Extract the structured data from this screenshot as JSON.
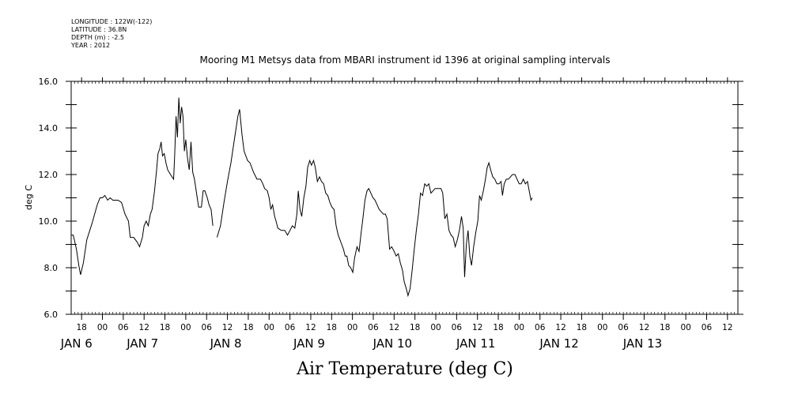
{
  "chart_data": {
    "type": "line",
    "title": "Mooring M1 Metsys data from MBARI instrument id 1396 at original sampling intervals",
    "meta": [
      "LONGITUDE : 122W(-122)",
      "LATITUDE : 36.8N",
      "DEPTH (m) : -2.5",
      "YEAR : 2012"
    ],
    "xlabel": "Air Temperature (deg C)",
    "ylabel": "deg C",
    "ylim": [
      6.0,
      16.0
    ],
    "yticks": [
      "6.0",
      "8.0",
      "10.0",
      "12.0",
      "14.0",
      "16.0"
    ],
    "xlim": [
      "2012-01-05T15:00",
      "2012-01-13T15:00"
    ],
    "hour_ticks": [
      "18",
      "00",
      "06",
      "12",
      "18",
      "00",
      "06",
      "12",
      "18",
      "00",
      "06",
      "12",
      "18",
      "00",
      "06",
      "12",
      "18",
      "00",
      "06",
      "12",
      "18",
      "00",
      "06",
      "12",
      "18",
      "00",
      "06",
      "12",
      "18",
      "00",
      "06",
      "12"
    ],
    "day_labels": [
      "JAN  6",
      "JAN  7",
      "JAN  8",
      "JAN  9",
      "JAN 10",
      "JAN 11",
      "JAN 12",
      "JAN 13"
    ],
    "grid": false,
    "line_color": "#000000",
    "series": [
      {
        "values": [
          [
            0,
            9.4
          ],
          [
            0.6,
            9.4
          ],
          [
            1.5,
            8.8
          ],
          [
            2.2,
            8.1
          ],
          [
            2.7,
            7.7
          ],
          [
            3.5,
            8.2
          ],
          [
            4.5,
            9.2
          ],
          [
            6,
            9.9
          ],
          [
            7.5,
            10.7
          ],
          [
            8.3,
            11.0
          ],
          [
            9,
            11.0
          ],
          [
            9.7,
            11.1
          ],
          [
            10.5,
            10.9
          ],
          [
            11.2,
            11.0
          ],
          [
            12,
            10.9
          ],
          [
            13.5,
            10.9
          ],
          [
            14.5,
            10.8
          ],
          [
            15.5,
            10.3
          ],
          [
            16.5,
            10.0
          ],
          [
            17,
            9.3
          ],
          [
            18,
            9.3
          ],
          [
            19,
            9.1
          ],
          [
            19.7,
            8.9
          ],
          [
            20.5,
            9.3
          ],
          [
            21,
            9.8
          ],
          [
            21.6,
            10.0
          ],
          [
            22.2,
            9.8
          ],
          [
            22.8,
            10.3
          ],
          [
            23.3,
            10.5
          ],
          [
            24,
            11.3
          ],
          [
            24.6,
            12.2
          ],
          [
            25,
            12.9
          ],
          [
            25.5,
            13.1
          ],
          [
            25.9,
            13.4
          ],
          [
            26.3,
            12.8
          ],
          [
            26.8,
            12.9
          ],
          [
            27.3,
            12.5
          ],
          [
            27.8,
            12.2
          ],
          [
            28.6,
            12.0
          ],
          [
            29.5,
            11.8
          ],
          [
            29.8,
            12.8
          ],
          [
            30.2,
            14.5
          ],
          [
            30.6,
            13.6
          ],
          [
            31,
            15.3
          ],
          [
            31.4,
            14.2
          ],
          [
            31.8,
            14.9
          ],
          [
            32.2,
            14.5
          ],
          [
            32.6,
            13.0
          ],
          [
            33,
            13.5
          ],
          [
            33.5,
            12.7
          ],
          [
            34,
            12.2
          ],
          [
            34.5,
            13.4
          ],
          [
            35,
            12.1
          ],
          [
            35.5,
            11.8
          ],
          [
            36.3,
            11.0
          ],
          [
            36.7,
            10.6
          ],
          [
            37.5,
            10.6
          ],
          [
            38,
            11.3
          ],
          [
            38.5,
            11.3
          ],
          [
            39.2,
            11.0
          ],
          [
            39.7,
            10.7
          ],
          [
            40.3,
            10.5
          ],
          [
            40.8,
            9.8
          ],
          [
            41.2,
            null
          ],
          [
            42,
            9.3
          ],
          [
            43,
            9.8
          ],
          [
            44,
            10.8
          ],
          [
            45,
            11.7
          ],
          [
            46,
            12.5
          ],
          [
            47,
            13.5
          ],
          [
            48,
            14.5
          ],
          [
            48.5,
            14.8
          ],
          [
            49.2,
            13.7
          ],
          [
            49.8,
            13.0
          ],
          [
            50.8,
            12.6
          ],
          [
            51.5,
            12.5
          ],
          [
            52.5,
            12.1
          ],
          [
            53.5,
            11.8
          ],
          [
            54.5,
            11.8
          ],
          [
            55.2,
            11.6
          ],
          [
            55.7,
            11.4
          ],
          [
            56.5,
            11.3
          ],
          [
            57,
            11.0
          ],
          [
            57.5,
            10.5
          ],
          [
            58,
            10.7
          ],
          [
            58.6,
            10.2
          ],
          [
            59,
            10.0
          ],
          [
            59.5,
            9.7
          ],
          [
            60.5,
            9.6
          ],
          [
            61.5,
            9.6
          ],
          [
            62.3,
            9.4
          ],
          [
            63,
            9.6
          ],
          [
            63.7,
            9.8
          ],
          [
            64.4,
            9.7
          ],
          [
            65,
            10.3
          ],
          [
            65.4,
            11.3
          ],
          [
            65.9,
            10.5
          ],
          [
            66.4,
            10.2
          ],
          [
            67,
            11.0
          ],
          [
            67.6,
            11.5
          ],
          [
            68.1,
            12.3
          ],
          [
            68.7,
            12.6
          ],
          [
            69.2,
            12.4
          ],
          [
            69.8,
            12.6
          ],
          [
            70.3,
            12.3
          ],
          [
            70.9,
            11.7
          ],
          [
            71.5,
            11.9
          ],
          [
            72.1,
            11.7
          ],
          [
            72.7,
            11.6
          ],
          [
            73.3,
            11.2
          ],
          [
            73.9,
            11.1
          ],
          [
            74.5,
            10.8
          ],
          [
            75.1,
            10.6
          ],
          [
            75.7,
            10.5
          ],
          [
            76.3,
            9.8
          ],
          [
            76.9,
            9.4
          ],
          [
            77.4,
            9.2
          ],
          [
            77.9,
            9.0
          ],
          [
            78.4,
            8.8
          ],
          [
            78.9,
            8.5
          ],
          [
            79.4,
            8.5
          ],
          [
            79.9,
            8.1
          ],
          [
            80.5,
            8.0
          ],
          [
            81.1,
            7.8
          ],
          [
            81.6,
            8.4
          ],
          [
            82.3,
            8.9
          ],
          [
            82.9,
            8.7
          ],
          [
            83.5,
            9.5
          ],
          [
            84,
            10.1
          ],
          [
            84.6,
            10.9
          ],
          [
            85.2,
            11.3
          ],
          [
            85.7,
            11.4
          ],
          [
            86.3,
            11.2
          ],
          [
            86.9,
            11.0
          ],
          [
            87.5,
            10.9
          ],
          [
            88.1,
            10.7
          ],
          [
            88.7,
            10.5
          ],
          [
            89.3,
            10.4
          ],
          [
            89.9,
            10.3
          ],
          [
            90.5,
            10.3
          ],
          [
            91,
            10.1
          ],
          [
            91.7,
            8.8
          ],
          [
            92.3,
            8.9
          ],
          [
            93,
            8.7
          ],
          [
            93.6,
            8.5
          ],
          [
            94.2,
            8.6
          ],
          [
            94.8,
            8.2
          ],
          [
            95.4,
            7.9
          ],
          [
            95.9,
            7.4
          ],
          [
            96.5,
            7.1
          ],
          [
            97,
            6.8
          ],
          [
            97.6,
            7.1
          ],
          [
            98.2,
            7.9
          ],
          [
            98.8,
            8.8
          ],
          [
            99.4,
            9.6
          ],
          [
            100,
            10.3
          ],
          [
            100.6,
            11.2
          ],
          [
            101.2,
            11.1
          ],
          [
            101.8,
            11.6
          ],
          [
            102.4,
            11.5
          ],
          [
            103,
            11.6
          ],
          [
            103.6,
            11.2
          ],
          [
            104.2,
            11.3
          ],
          [
            104.8,
            11.4
          ],
          [
            105.5,
            11.4
          ],
          [
            106.5,
            11.4
          ],
          [
            107,
            11.2
          ],
          [
            107.6,
            10.1
          ],
          [
            108.2,
            10.3
          ],
          [
            108.8,
            9.6
          ],
          [
            109.4,
            9.4
          ],
          [
            110,
            9.3
          ],
          [
            110.6,
            8.9
          ],
          [
            111.2,
            9.2
          ],
          [
            111.8,
            9.6
          ],
          [
            112.4,
            10.2
          ],
          [
            112.9,
            9.7
          ],
          [
            113.3,
            7.6
          ],
          [
            113.8,
            9.0
          ],
          [
            114.3,
            9.6
          ],
          [
            114.8,
            8.5
          ],
          [
            115.3,
            8.1
          ],
          [
            115.9,
            8.9
          ],
          [
            116.5,
            9.5
          ],
          [
            117.1,
            10.0
          ],
          [
            117.6,
            11.1
          ],
          [
            118.1,
            10.9
          ],
          [
            118.7,
            11.3
          ],
          [
            119.3,
            11.8
          ],
          [
            119.8,
            12.3
          ],
          [
            120.3,
            12.5
          ],
          [
            120.8,
            12.2
          ],
          [
            121.4,
            11.9
          ],
          [
            122,
            11.8
          ],
          [
            122.6,
            11.6
          ],
          [
            123.2,
            11.6
          ],
          [
            123.8,
            11.7
          ],
          [
            124.2,
            11.1
          ],
          [
            124.7,
            11.6
          ],
          [
            125.3,
            11.8
          ],
          [
            125.9,
            11.8
          ],
          [
            126.5,
            11.9
          ],
          [
            127.1,
            12.0
          ],
          [
            127.8,
            12.0
          ],
          [
            128.4,
            11.8
          ],
          [
            129,
            11.6
          ],
          [
            129.6,
            11.6
          ],
          [
            130.2,
            11.8
          ],
          [
            130.8,
            11.6
          ],
          [
            131.4,
            11.7
          ],
          [
            131.9,
            11.3
          ],
          [
            132.4,
            10.9
          ],
          [
            132.8,
            11.0
          ]
        ]
      }
    ]
  }
}
